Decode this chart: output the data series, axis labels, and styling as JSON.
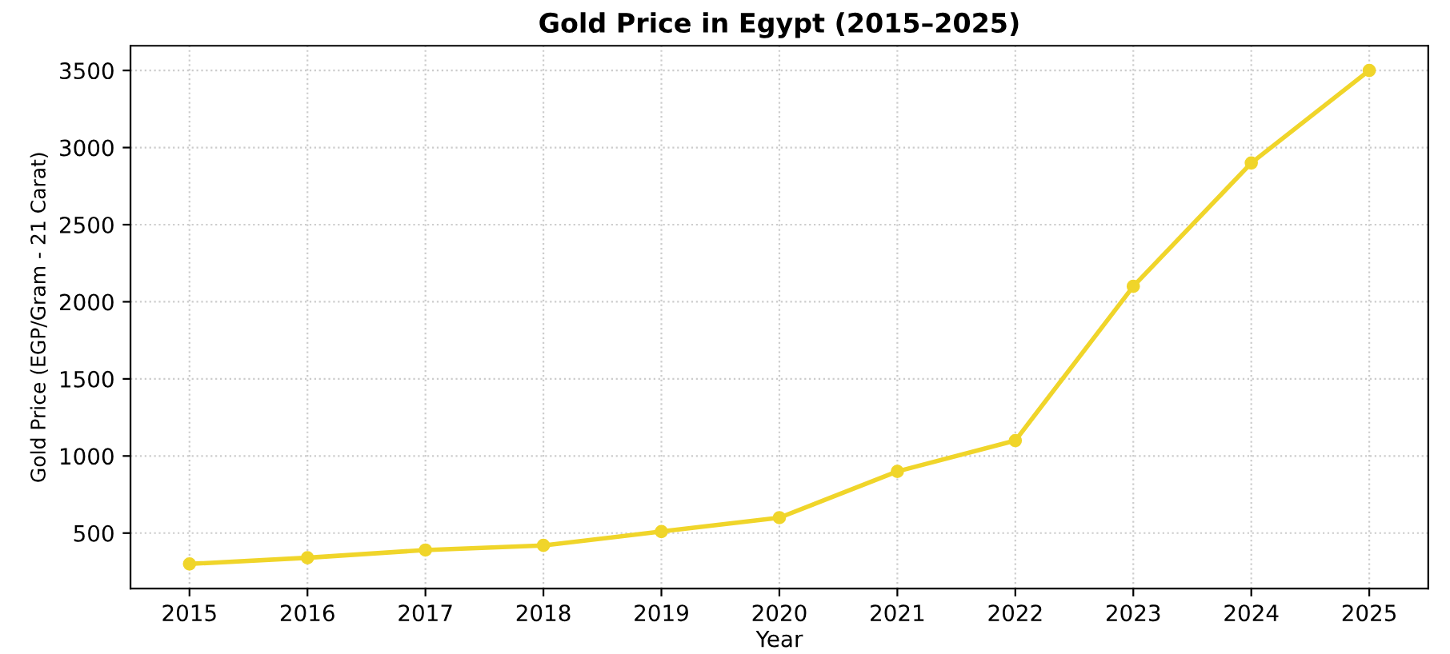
{
  "chart_data": {
    "type": "line",
    "title": "Gold Price in Egypt (2015–2025)",
    "xlabel": "Year",
    "ylabel": "Gold Price (EGP/Gram - 21 Carat)",
    "x": [
      2015,
      2016,
      2017,
      2018,
      2019,
      2020,
      2021,
      2022,
      2023,
      2024,
      2025
    ],
    "series": [
      {
        "color": "#f0d52a",
        "values": [
          300,
          340,
          390,
          420,
          510,
          600,
          900,
          1100,
          2100,
          2900,
          3500
        ]
      }
    ],
    "xlim": [
      2014.5,
      2025.5
    ],
    "ylim": [
      140,
      3660
    ],
    "xticks": [
      2015,
      2016,
      2017,
      2018,
      2019,
      2020,
      2021,
      2022,
      2023,
      2024,
      2025
    ],
    "yticks": [
      500,
      1000,
      1500,
      2000,
      2500,
      3000,
      3500
    ],
    "grid": true,
    "marker": "circle",
    "line_style": "solid"
  }
}
